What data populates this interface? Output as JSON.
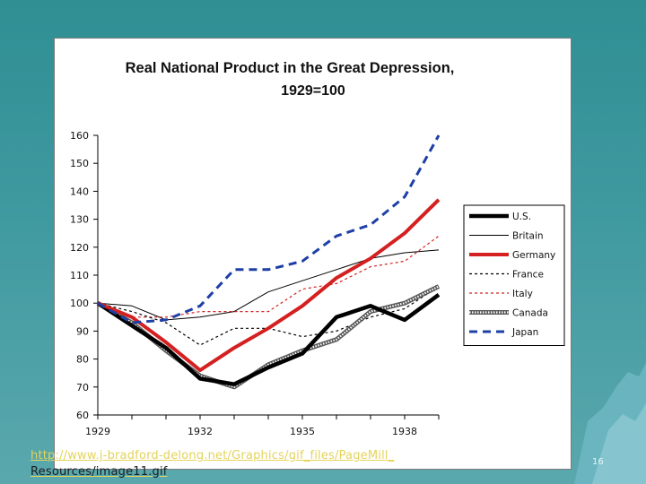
{
  "slide": {
    "link_text_line1": "http://www.j-bradford-delong.net/Graphics/gif_files/PageMill_",
    "link_text_line2": "Resources/image11.gif",
    "page_number": "16"
  },
  "chart_data": {
    "type": "line",
    "title": "Real National Product in the Great Depression,",
    "subtitle": "1929=100",
    "xlabel": "",
    "ylabel": "",
    "xlim": [
      1929,
      1939
    ],
    "ylim": [
      60,
      160
    ],
    "y_ticks": [
      60,
      70,
      80,
      90,
      100,
      110,
      120,
      130,
      140,
      150,
      160
    ],
    "x_tick_labels": [
      {
        "x": 1929,
        "label": "1929"
      },
      {
        "x": 1932,
        "label": "1932"
      },
      {
        "x": 1935,
        "label": "1935"
      },
      {
        "x": 1938,
        "label": "1938"
      }
    ],
    "x": [
      1929,
      1930,
      1931,
      1932,
      1933,
      1934,
      1935,
      1936,
      1937,
      1938,
      1939
    ],
    "legend_position": "right",
    "series": [
      {
        "name": "U.S.",
        "color": "#000000",
        "style": "thick",
        "values": [
          100,
          92,
          84,
          73,
          71,
          77,
          82,
          95,
          99,
          94,
          103
        ]
      },
      {
        "name": "Britain",
        "color": "#000000",
        "style": "thin",
        "values": [
          100,
          99,
          94,
          95,
          97,
          104,
          108,
          112,
          116,
          118,
          119
        ]
      },
      {
        "name": "Germany",
        "color": "#d42020",
        "style": "thick-red",
        "values": [
          100,
          95,
          86,
          76,
          84,
          91,
          99,
          109,
          116,
          125,
          137
        ]
      },
      {
        "name": "France",
        "color": "#000000",
        "style": "dotted",
        "values": [
          100,
          97,
          93,
          85,
          91,
          91,
          88,
          90,
          95,
          98,
          106
        ]
      },
      {
        "name": "Italy",
        "color": "#d42020",
        "style": "dotted-red",
        "values": [
          100,
          95,
          95,
          97,
          97,
          97,
          105,
          107,
          113,
          115,
          124
        ]
      },
      {
        "name": "Canada",
        "color": "#666666",
        "style": "hatched",
        "values": [
          100,
          93,
          83,
          74,
          70,
          78,
          83,
          87,
          97,
          100,
          106
        ]
      },
      {
        "name": "Japan",
        "color": "#1e3fa6",
        "style": "dashed-blue",
        "values": [
          100,
          93,
          94,
          99,
          112,
          112,
          115,
          124,
          128,
          138,
          160
        ]
      }
    ]
  }
}
